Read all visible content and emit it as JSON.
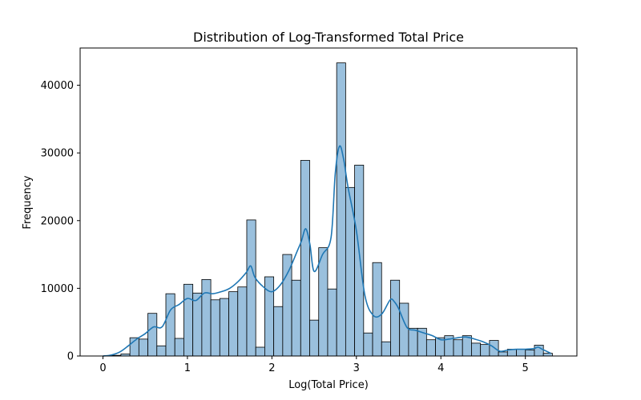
{
  "chart_data": {
    "type": "bar",
    "title": "Distribution of Log-Transformed Total Price",
    "xlabel": "Log(Total Price)",
    "ylabel": "Frequency",
    "xlim": [
      -0.27,
      5.61
    ],
    "ylim": [
      0,
      45500
    ],
    "xticks": [
      0,
      1,
      2,
      3,
      4,
      5
    ],
    "yticks": [
      0,
      10000,
      20000,
      30000,
      40000
    ],
    "grid": false,
    "colors": {
      "bar_fill": "#9ac0dd",
      "bar_edge": "#000000",
      "kde_line": "#1f77b4"
    },
    "bins": {
      "start": 0.0,
      "width": 0.1064,
      "values": [
        0,
        100,
        300,
        2700,
        2500,
        6300,
        1500,
        9200,
        2600,
        10600,
        9300,
        11300,
        8300,
        8500,
        9500,
        10200,
        20100,
        1300,
        11700,
        7300,
        15000,
        11200,
        28900,
        5300,
        16000,
        9900,
        43300,
        24900,
        28200,
        3400,
        13800,
        2100,
        11200,
        7800,
        4100,
        4100,
        2400,
        2700,
        3000,
        2400,
        3000,
        1900,
        1700,
        2300,
        600,
        1000,
        1000,
        900,
        1600,
        400
      ]
    },
    "kde": {
      "x": [
        0.0,
        0.1,
        0.2,
        0.3,
        0.4,
        0.5,
        0.6,
        0.7,
        0.8,
        0.9,
        1.0,
        1.1,
        1.2,
        1.3,
        1.4,
        1.5,
        1.6,
        1.7,
        1.75,
        1.8,
        1.9,
        2.0,
        2.1,
        2.2,
        2.3,
        2.35,
        2.4,
        2.45,
        2.5,
        2.6,
        2.7,
        2.75,
        2.8,
        2.85,
        2.9,
        3.0,
        3.1,
        3.2,
        3.3,
        3.4,
        3.45,
        3.5,
        3.6,
        3.7,
        3.8,
        3.9,
        4.0,
        4.1,
        4.2,
        4.3,
        4.4,
        4.5,
        4.6,
        4.7,
        4.8,
        4.9,
        5.0,
        5.1,
        5.15,
        5.2,
        5.3
      ],
      "y": [
        0,
        150,
        600,
        1500,
        2500,
        3300,
        4300,
        4300,
        6800,
        7600,
        8500,
        8200,
        9300,
        9200,
        9500,
        10000,
        11000,
        12400,
        13300,
        11600,
        10200,
        9500,
        10500,
        12600,
        15500,
        17000,
        18800,
        16500,
        12500,
        15000,
        17500,
        27000,
        31000,
        29000,
        25000,
        18500,
        9000,
        6000,
        6200,
        8300,
        8000,
        7000,
        4200,
        3800,
        3400,
        3000,
        2400,
        2500,
        2700,
        2800,
        2500,
        2100,
        1500,
        700,
        900,
        1000,
        1000,
        1100,
        1300,
        1000,
        400
      ]
    }
  }
}
